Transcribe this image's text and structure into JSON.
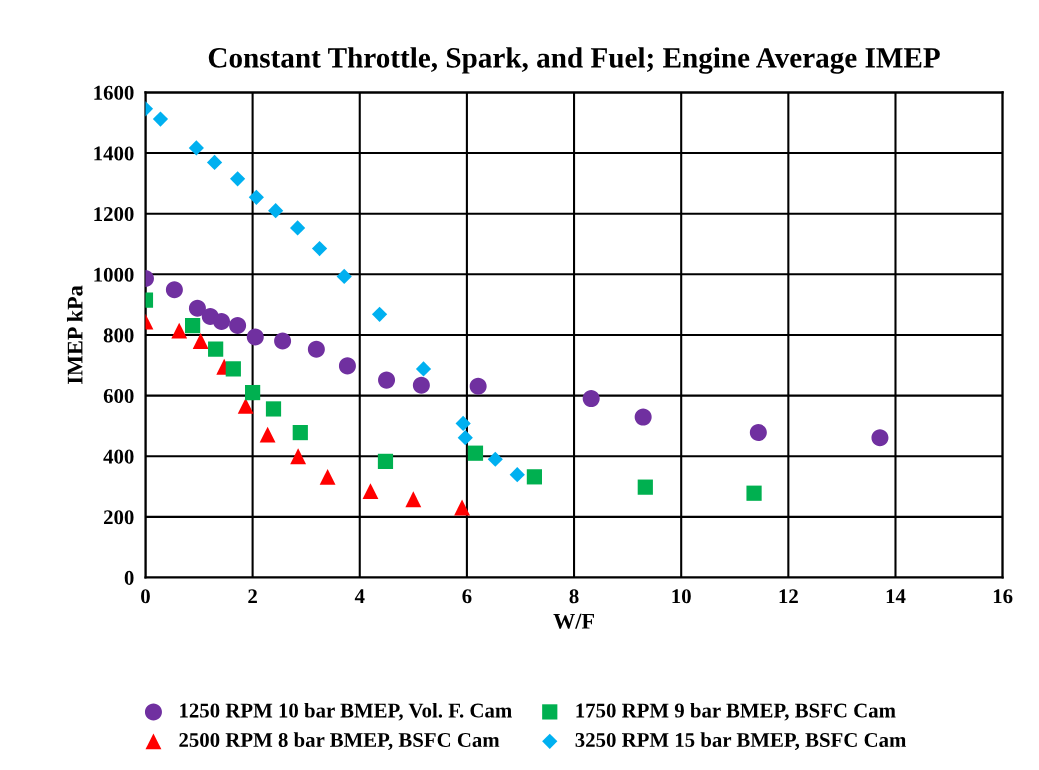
{
  "chart_data": {
    "type": "scatter",
    "title": "Constant Throttle, Spark, and Fuel; Engine Average IMEP",
    "xlabel": "W/F",
    "ylabel": "IMEP kPa",
    "xlim": [
      0,
      16
    ],
    "xticks": [
      0,
      2,
      4,
      6,
      8,
      10,
      12,
      14,
      16
    ],
    "ylim": [
      0,
      1600
    ],
    "yticks": [
      0,
      200,
      400,
      600,
      800,
      1000,
      1200,
      1400,
      1600
    ],
    "grid": true,
    "legend": "bottom",
    "series": [
      {
        "name": "1250 RPM 10 bar BMEP, Vol. F. Cam",
        "color": "#7030a0",
        "marker": "circle",
        "x": [
          0.0,
          0.54,
          0.97,
          1.21,
          1.42,
          1.72,
          2.05,
          2.56,
          3.19,
          3.77,
          4.5,
          5.15,
          6.21,
          8.32,
          9.29,
          11.44,
          13.71
        ],
        "values": [
          986,
          949,
          888,
          861,
          844,
          831,
          793,
          780,
          753,
          698,
          651,
          634,
          631,
          590,
          529,
          478,
          461
        ]
      },
      {
        "name": "2500 RPM 8 bar BMEP, BSFC Cam",
        "color": "#ff0000",
        "marker": "triangle",
        "x": [
          0.0,
          0.63,
          1.03,
          1.47,
          1.87,
          2.28,
          2.85,
          3.4,
          4.2,
          5.0,
          5.91
        ],
        "values": [
          844,
          814,
          780,
          695,
          566,
          471,
          400,
          332,
          285,
          258,
          231
        ]
      },
      {
        "name": "1750 RPM 9 bar BMEP, BSFC Cam",
        "color": "#00b050",
        "marker": "square",
        "x": [
          0.0,
          0.88,
          1.31,
          1.64,
          2.0,
          2.39,
          2.89,
          4.48,
          6.16,
          7.26,
          9.33,
          11.36
        ],
        "values": [
          915,
          831,
          753,
          688,
          610,
          556,
          478,
          383,
          410,
          332,
          298,
          278
        ]
      },
      {
        "name": "3250 RPM 15 bar BMEP, BSFC Cam",
        "color": "#00b0f0",
        "marker": "diamond",
        "x": [
          0.0,
          0.28,
          0.95,
          1.29,
          1.72,
          2.07,
          2.43,
          2.84,
          3.25,
          3.71,
          4.37,
          5.19,
          5.93,
          5.97,
          6.53,
          6.94
        ],
        "values": [
          1546,
          1512,
          1417,
          1369,
          1315,
          1254,
          1210,
          1153,
          1085,
          993,
          868,
          688,
          508,
          461,
          390,
          339
        ]
      }
    ]
  }
}
